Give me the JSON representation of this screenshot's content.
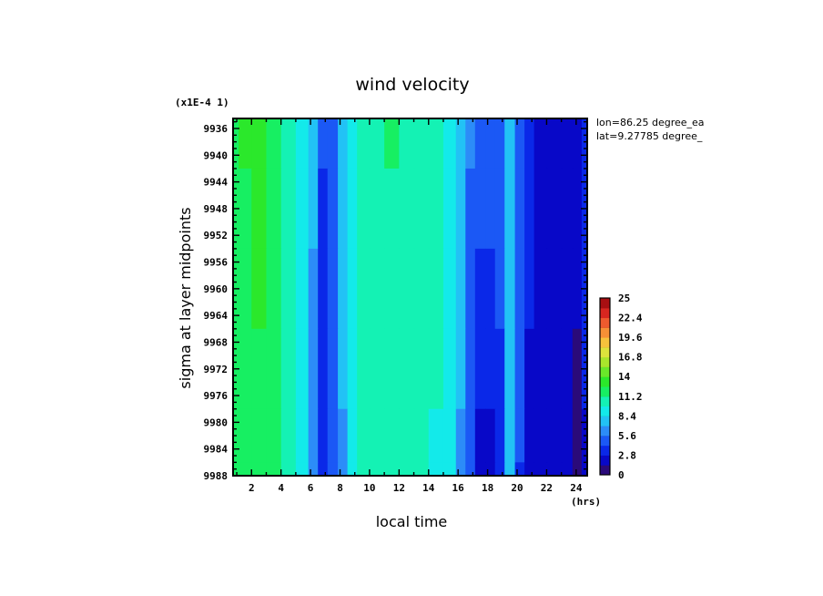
{
  "chart_data": {
    "type": "heatmap",
    "title": "wind velocity",
    "xlabel": "local time",
    "ylabel": "sigma at layer midpoints",
    "y_scale_note": "(x1E-4 1)",
    "x_unit": "(hrs)",
    "annotations": [
      "lon=86.25 degree_ea",
      "lat=9.27785 degree_"
    ],
    "x_ticks": [
      2,
      4,
      6,
      8,
      10,
      12,
      14,
      16,
      18,
      20,
      22,
      24
    ],
    "y_ticks": [
      9936,
      9940,
      9944,
      9948,
      9952,
      9956,
      9960,
      9964,
      9968,
      9972,
      9976,
      9980,
      9984,
      9988
    ],
    "xlim": [
      0.75,
      24.75
    ],
    "ylim": [
      9934.5,
      9988
    ],
    "y_inverted": true,
    "x": [
      0.75,
      1.5,
      2.5,
      3.5,
      4.5,
      5.5,
      6.2,
      6.8,
      7.5,
      8.2,
      8.8,
      9.5,
      10.5,
      11.5,
      12.5,
      13.5,
      14.5,
      15.5,
      16.2,
      16.8,
      17.5,
      18.2,
      18.8,
      19.5,
      20.2,
      20.8,
      21.5,
      22.5,
      23.5,
      24.0,
      24.75
    ],
    "y_levels": [
      9936,
      9948,
      9960,
      9972,
      9984,
      9988
    ],
    "values": [
      [
        12.2,
        12.6,
        12.8,
        12.2,
        11.0,
        9.3,
        7.2,
        4.2,
        5.0,
        7.4,
        9.4,
        10.6,
        11.1,
        11.2,
        11.0,
        10.6,
        10.1,
        9.2,
        7.6,
        5.6,
        5.0,
        4.6,
        5.3,
        8.2,
        5.2,
        3.3,
        2.6,
        2.4,
        2.5,
        1.8,
        4.0
      ],
      [
        12.0,
        12.4,
        12.6,
        12.1,
        10.9,
        9.2,
        7.0,
        4.1,
        4.8,
        7.2,
        9.2,
        10.5,
        11.0,
        11.1,
        10.9,
        10.5,
        10.0,
        9.0,
        7.4,
        5.4,
        4.6,
        4.2,
        4.9,
        8.0,
        5.0,
        3.0,
        2.3,
        2.2,
        2.3,
        1.6,
        3.6
      ],
      [
        11.8,
        12.3,
        12.5,
        12.0,
        10.8,
        9.1,
        6.9,
        4.0,
        4.7,
        7.1,
        9.1,
        10.4,
        10.9,
        11.0,
        10.8,
        10.4,
        9.9,
        8.9,
        7.3,
        5.2,
        4.0,
        3.6,
        4.5,
        7.8,
        4.8,
        2.8,
        2.1,
        2.0,
        2.1,
        1.5,
        3.2
      ],
      [
        11.6,
        12.2,
        12.4,
        11.9,
        10.7,
        9.0,
        6.8,
        3.9,
        4.5,
        7.0,
        9.0,
        10.3,
        10.8,
        10.9,
        10.7,
        10.3,
        9.8,
        8.8,
        7.1,
        4.8,
        3.2,
        3.0,
        4.0,
        7.6,
        4.5,
        2.6,
        2.0,
        1.9,
        1.9,
        1.3,
        2.8
      ],
      [
        11.5,
        12.0,
        12.3,
        11.8,
        10.6,
        8.9,
        6.6,
        3.8,
        4.3,
        6.8,
        8.9,
        10.2,
        10.7,
        10.8,
        10.6,
        10.2,
        9.7,
        8.6,
        6.9,
        4.4,
        2.6,
        2.5,
        3.6,
        7.4,
        4.2,
        2.4,
        1.8,
        1.7,
        1.7,
        1.1,
        2.4
      ],
      [
        11.4,
        11.9,
        12.2,
        11.7,
        10.5,
        8.8,
        6.5,
        3.7,
        4.2,
        6.7,
        8.8,
        10.1,
        10.6,
        10.7,
        10.5,
        10.1,
        9.6,
        8.5,
        6.8,
        4.2,
        2.3,
        2.2,
        3.4,
        7.3,
        4.0,
        2.3,
        1.7,
        1.6,
        1.5,
        0.6,
        2.2
      ]
    ],
    "colorbar": {
      "range": [
        0,
        25
      ],
      "ticks": [
        "25",
        "22.4",
        "19.6",
        "16.8",
        "14",
        "11.2",
        "8.4",
        "5.6",
        "2.8",
        "0"
      ],
      "colors": [
        "#2a0a7a",
        "#0808c8",
        "#0a28e8",
        "#1b58f5",
        "#2c8cf8",
        "#22c2f5",
        "#13eaea",
        "#14f2b4",
        "#17ef62",
        "#2be82b",
        "#6ae72a",
        "#a9e52c",
        "#dde33c",
        "#f6c23c",
        "#f69036",
        "#ee5a2e",
        "#d82620",
        "#a80f12"
      ]
    }
  }
}
